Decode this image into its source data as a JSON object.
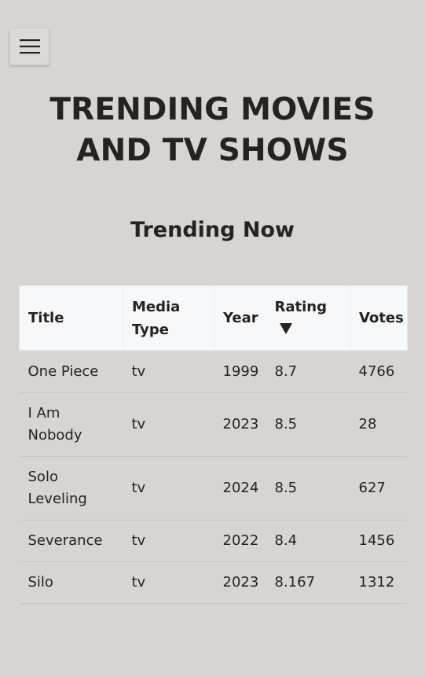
{
  "menu": {
    "icon": "hamburger-icon"
  },
  "header": {
    "title_line1": "TRENDING MOVIES",
    "title_line2": "AND TV SHOWS"
  },
  "section": {
    "title": "Trending Now"
  },
  "table": {
    "columns": [
      {
        "label_line1": "Title",
        "label_line2": ""
      },
      {
        "label_line1": "Media",
        "label_line2": "Type"
      },
      {
        "label_line1": "Year",
        "label_line2": ""
      },
      {
        "label_line1": "Rating",
        "label_line2": "",
        "sort": "descending"
      },
      {
        "label_line1": "Votes",
        "label_line2": ""
      }
    ],
    "rows": [
      {
        "title_line1": "One Piece",
        "title_line2": "",
        "media_type": "tv",
        "year": "1999",
        "rating": "8.7",
        "votes": "4766"
      },
      {
        "title_line1": "I Am",
        "title_line2": "Nobody",
        "media_type": "tv",
        "year": "2023",
        "rating": "8.5",
        "votes": "28"
      },
      {
        "title_line1": "Solo",
        "title_line2": "Leveling",
        "media_type": "tv",
        "year": "2024",
        "rating": "8.5",
        "votes": "627"
      },
      {
        "title_line1": "Severance",
        "title_line2": "",
        "media_type": "tv",
        "year": "2022",
        "rating": "8.4",
        "votes": "1456"
      },
      {
        "title_line1": "Silo",
        "title_line2": "",
        "media_type": "tv",
        "year": "2023",
        "rating": "8.167",
        "votes": "1312"
      }
    ]
  },
  "colors": {
    "background": "#d7d4d2",
    "header_row": "#f7f8fa",
    "text": "#222222"
  }
}
